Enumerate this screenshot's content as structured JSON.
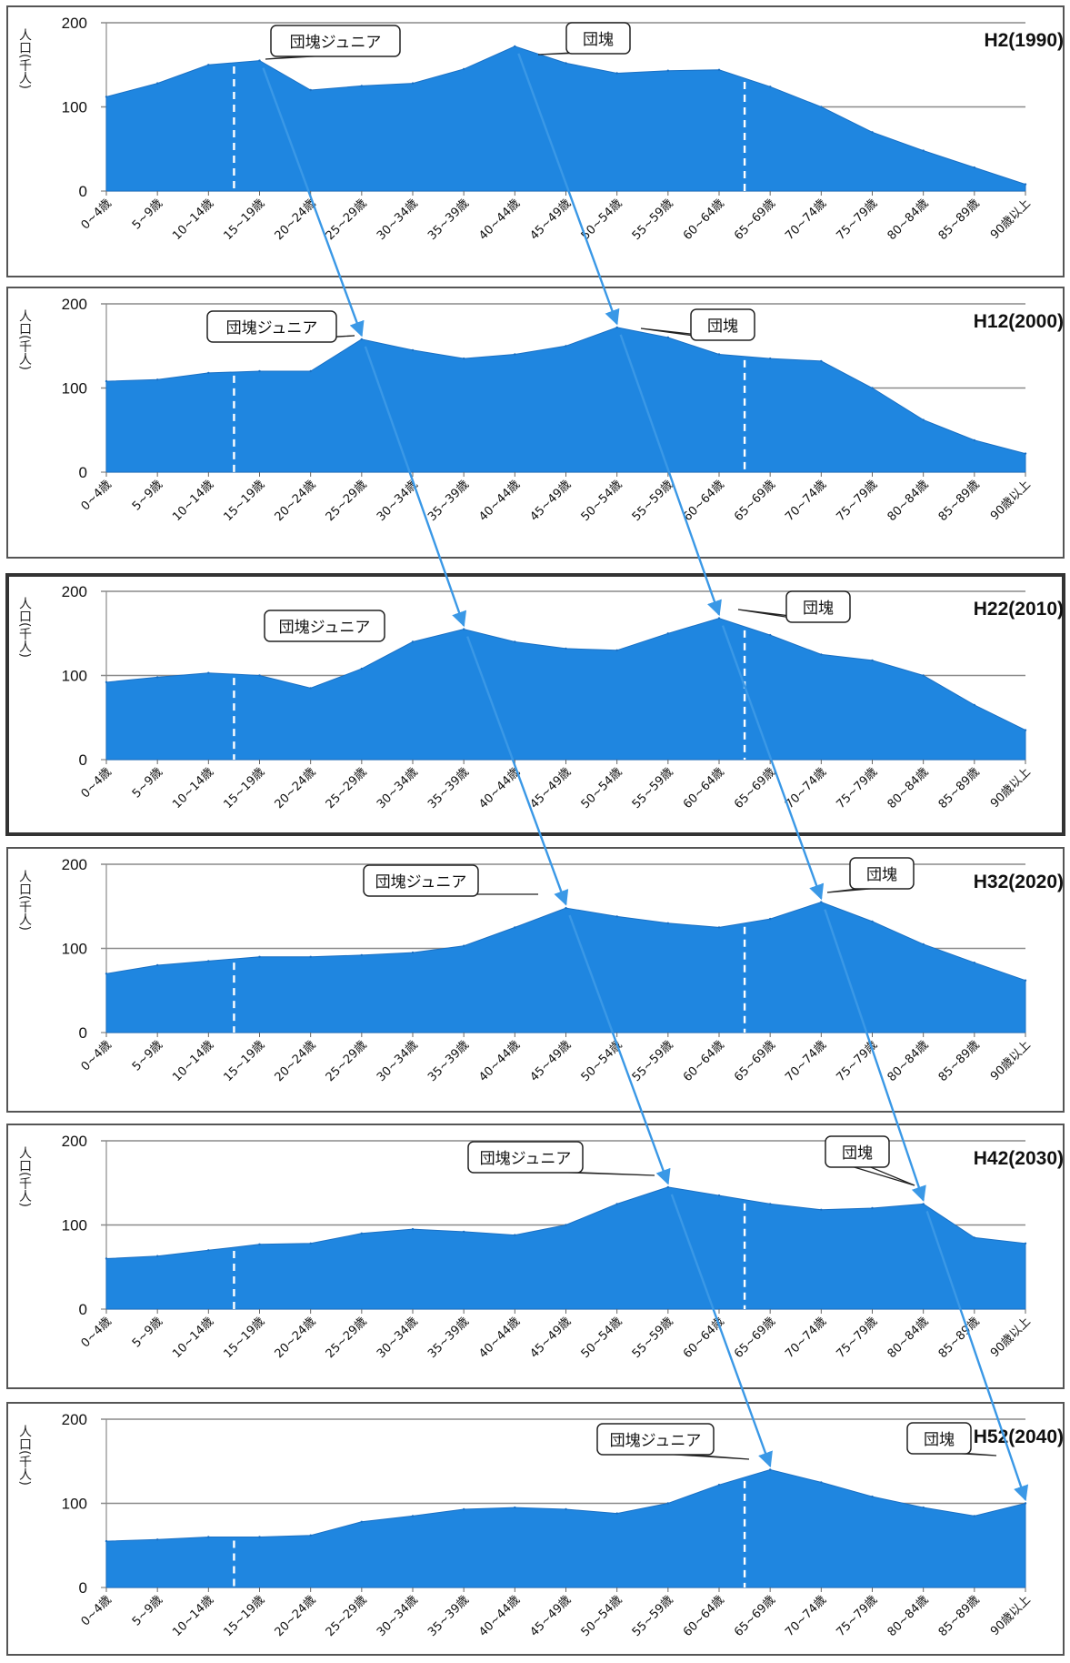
{
  "colors": {
    "area": "#1f86e0",
    "area_edge": "#1a70c4",
    "arrow": "#3a98e6",
    "gridline": "#8a8a8a",
    "divider": "#ffffff"
  },
  "chart_data": [
    {
      "type": "area",
      "title": "H2(1990)",
      "ylabel": "人口(千人)",
      "ylim": [
        0,
        200
      ],
      "yticks": [
        0,
        100,
        200
      ],
      "grid": true,
      "categories": [
        "0~4歳",
        "5~9歳",
        "10~14歳",
        "15~19歳",
        "20~24歳",
        "25~29歳",
        "30~34歳",
        "35~39歳",
        "40~44歳",
        "45~49歳",
        "50~54歳",
        "55~59歳",
        "60~64歳",
        "65~69歳",
        "70~74歳",
        "75~79歳",
        "80~84歳",
        "85~89歳",
        "90歳以上"
      ],
      "values": [
        112,
        128,
        150,
        155,
        120,
        125,
        128,
        145,
        172,
        152,
        140,
        143,
        144,
        124,
        100,
        70,
        48,
        28,
        8
      ],
      "dividers_after": [
        "10~14歳",
        "60~64歳"
      ],
      "annotations": [
        {
          "text": "団塊ジュニア",
          "category": "15~19歳"
        },
        {
          "text": "団塊",
          "category": "40~44歳"
        }
      ]
    },
    {
      "type": "area",
      "title": "H12(2000)",
      "ylabel": "人口(千人)",
      "ylim": [
        0,
        200
      ],
      "yticks": [
        0,
        100,
        200
      ],
      "grid": true,
      "categories": [
        "0~4歳",
        "5~9歳",
        "10~14歳",
        "15~19歳",
        "20~24歳",
        "25~29歳",
        "30~34歳",
        "35~39歳",
        "40~44歳",
        "45~49歳",
        "50~54歳",
        "55~59歳",
        "60~64歳",
        "65~69歳",
        "70~74歳",
        "75~79歳",
        "80~84歳",
        "85~89歳",
        "90歳以上"
      ],
      "values": [
        108,
        110,
        118,
        120,
        120,
        158,
        145,
        135,
        140,
        150,
        172,
        160,
        140,
        135,
        132,
        100,
        62,
        38,
        22
      ],
      "dividers_after": [
        "10~14歳",
        "60~64歳"
      ],
      "annotations": [
        {
          "text": "団塊ジュニア",
          "category": "25~29歳"
        },
        {
          "text": "団塊",
          "category": "50~54歳"
        }
      ]
    },
    {
      "type": "area",
      "title": "H22(2010)",
      "ylabel": "人口(千人)",
      "ylim": [
        0,
        200
      ],
      "yticks": [
        0,
        100,
        200
      ],
      "grid": true,
      "categories": [
        "0~4歳",
        "5~9歳",
        "10~14歳",
        "15~19歳",
        "20~24歳",
        "25~29歳",
        "30~34歳",
        "35~39歳",
        "40~44歳",
        "45~49歳",
        "50~54歳",
        "55~59歳",
        "60~64歳",
        "65~69歳",
        "70~74歳",
        "75~79歳",
        "80~84歳",
        "85~89歳",
        "90歳以上"
      ],
      "values": [
        92,
        98,
        103,
        100,
        85,
        108,
        140,
        155,
        140,
        132,
        130,
        150,
        168,
        148,
        125,
        118,
        100,
        65,
        35
      ],
      "dividers_after": [
        "10~14歳",
        "60~64歳"
      ],
      "annotations": [
        {
          "text": "団塊ジュニア",
          "category": "35~39歳"
        },
        {
          "text": "団塊",
          "category": "60~64歳"
        }
      ]
    },
    {
      "type": "area",
      "title": "H32(2020)",
      "ylabel": "人口(千人)",
      "ylim": [
        0,
        200
      ],
      "yticks": [
        0,
        100,
        200
      ],
      "grid": true,
      "categories": [
        "0~4歳",
        "5~9歳",
        "10~14歳",
        "15~19歳",
        "20~24歳",
        "25~29歳",
        "30~34歳",
        "35~39歳",
        "40~44歳",
        "45~49歳",
        "50~54歳",
        "55~59歳",
        "60~64歳",
        "65~69歳",
        "70~74歳",
        "75~79歳",
        "80~84歳",
        "85~89歳",
        "90歳以上"
      ],
      "values": [
        70,
        80,
        85,
        90,
        90,
        92,
        95,
        103,
        125,
        148,
        138,
        130,
        125,
        135,
        155,
        132,
        105,
        83,
        62
      ],
      "dividers_after": [
        "10~14歳",
        "60~64歳"
      ],
      "annotations": [
        {
          "text": "団塊ジュニア",
          "category": "45~49歳"
        },
        {
          "text": "団塊",
          "category": "70~74歳"
        }
      ]
    },
    {
      "type": "area",
      "title": "H42(2030)",
      "ylabel": "人口(千人)",
      "ylim": [
        0,
        200
      ],
      "yticks": [
        0,
        100,
        200
      ],
      "grid": true,
      "categories": [
        "0~4歳",
        "5~9歳",
        "10~14歳",
        "15~19歳",
        "20~24歳",
        "25~29歳",
        "30~34歳",
        "35~39歳",
        "40~44歳",
        "45~49歳",
        "50~54歳",
        "55~59歳",
        "60~64歳",
        "65~69歳",
        "70~74歳",
        "75~79歳",
        "80~84歳",
        "85~89歳",
        "90歳以上"
      ],
      "values": [
        60,
        63,
        70,
        77,
        78,
        90,
        95,
        92,
        88,
        100,
        125,
        145,
        135,
        125,
        118,
        120,
        125,
        85,
        78
      ],
      "dividers_after": [
        "10~14歳",
        "60~64歳"
      ],
      "annotations": [
        {
          "text": "団塊ジュニア",
          "category": "55~59歳"
        },
        {
          "text": "団塊",
          "category": "80~84歳"
        }
      ]
    },
    {
      "type": "area",
      "title": "H52(2040)",
      "ylabel": "人口(千人)",
      "ylim": [
        0,
        200
      ],
      "yticks": [
        0,
        100,
        200
      ],
      "grid": true,
      "categories": [
        "0~4歳",
        "5~9歳",
        "10~14歳",
        "15~19歳",
        "20~24歳",
        "25~29歳",
        "30~34歳",
        "35~39歳",
        "40~44歳",
        "45~49歳",
        "50~54歳",
        "55~59歳",
        "60~64歳",
        "65~69歳",
        "70~74歳",
        "75~79歳",
        "80~84歳",
        "85~89歳",
        "90歳以上"
      ],
      "values": [
        55,
        57,
        60,
        60,
        62,
        78,
        85,
        93,
        95,
        93,
        88,
        100,
        122,
        140,
        125,
        108,
        95,
        85,
        100
      ],
      "dividers_after": [
        "10~14歳",
        "60~64歳"
      ],
      "annotations": [
        {
          "text": "団塊ジュニア",
          "category": "65~69歳"
        },
        {
          "text": "団塊",
          "category": "90歳以上"
        }
      ]
    }
  ]
}
